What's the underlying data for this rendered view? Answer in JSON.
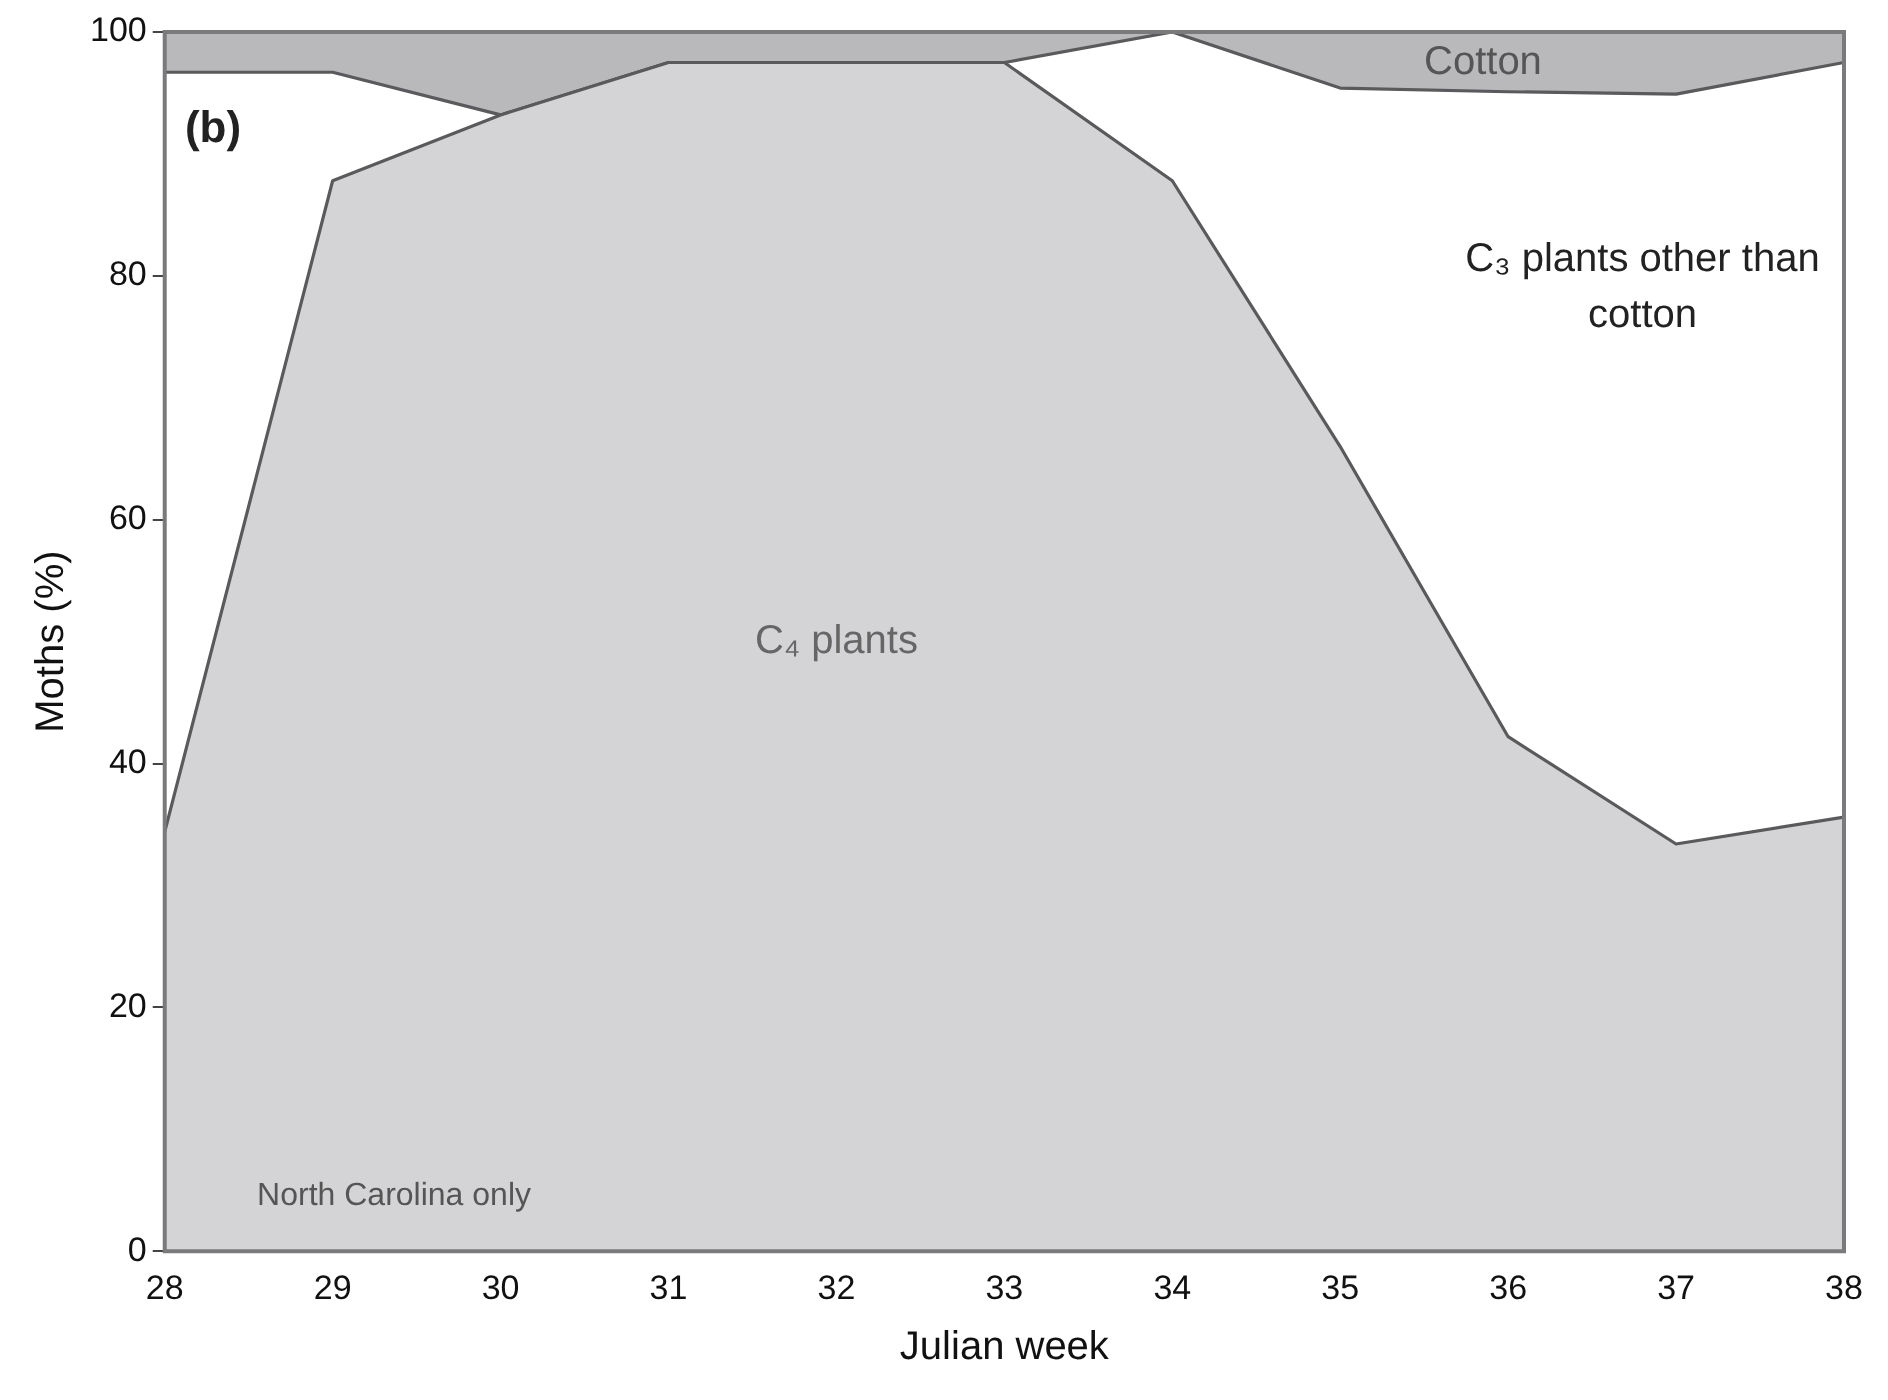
{
  "chart_data": {
    "type": "area",
    "stacked": true,
    "xlabel": "Julian week",
    "ylabel": "Moths (%)",
    "x": [
      28,
      29,
      30,
      31,
      32,
      33,
      34,
      35,
      36,
      37,
      38
    ],
    "series": [
      {
        "name": "C₄ plants",
        "color": "#d4d4d6",
        "values": [
          34.4,
          87.8,
          93.2,
          97.5,
          97.5,
          97.5,
          87.8,
          66,
          42.2,
          33.4,
          35.6
        ]
      },
      {
        "name": "C₃ plants other than cotton",
        "color": "#ffffff",
        "values": [
          62.3,
          8.9,
          0,
          0,
          0,
          0,
          12.2,
          29.4,
          52.9,
          61.5,
          61.9
        ]
      },
      {
        "name": "Cotton",
        "color": "#b9b9bb",
        "values": [
          3.3,
          3.3,
          6.8,
          2.5,
          2.5,
          2.5,
          0,
          4.6,
          4.9,
          5.1,
          2.5
        ]
      }
    ],
    "xlim": [
      28,
      38
    ],
    "xticks": [
      28,
      29,
      30,
      31,
      32,
      33,
      34,
      35,
      36,
      37,
      38
    ],
    "ylim": [
      0,
      100
    ],
    "yticks": [
      0,
      20,
      40,
      60,
      80,
      100
    ],
    "grid": false,
    "legend": false,
    "annotations": [
      "(b)",
      "North Carolina only"
    ]
  }
}
